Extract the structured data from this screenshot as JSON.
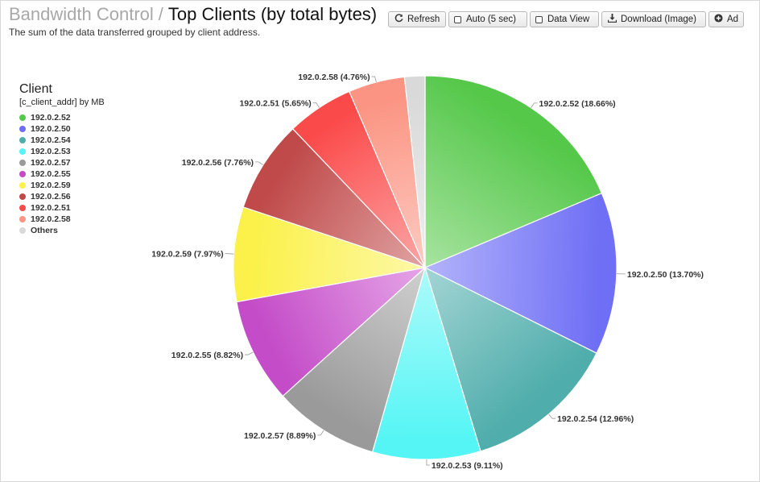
{
  "header": {
    "breadcrumb": "Bandwidth Control",
    "separator": "/",
    "title": "Top Clients (by total bytes)",
    "subtitle": "The sum of the data transferred grouped by client address."
  },
  "toolbar": {
    "refresh_label": "Refresh",
    "auto_label": "Auto (5 sec)",
    "dataview_label": "Data View",
    "download_label": "Download (Image)",
    "add_label": "Ad"
  },
  "icons": {
    "refresh": "refresh-icon",
    "auto": "checkbox-icon",
    "dataview": "checkbox-icon",
    "download": "download-icon",
    "add": "plus-circle-icon"
  },
  "chart_data": {
    "type": "pie",
    "legend_title": "Client",
    "legend_subtitle": "[c_client_addr] by MB",
    "legend_position": "left",
    "slices": [
      {
        "name": "192.0.2.52",
        "percent": 18.66,
        "label": "192.0.2.52 (18.66%)",
        "color": "#55c84a",
        "light": "#a7e3a0"
      },
      {
        "name": "192.0.2.50",
        "percent": 13.7,
        "label": "192.0.2.50 (13.70%)",
        "color": "#6f6ff5",
        "light": "#b3b3fb"
      },
      {
        "name": "192.0.2.54",
        "percent": 12.96,
        "label": "192.0.2.54 (12.96%)",
        "color": "#4fadab",
        "light": "#a3d5d4"
      },
      {
        "name": "192.0.2.53",
        "percent": 9.11,
        "label": "192.0.2.53 (9.11%)",
        "color": "#55f5f5",
        "light": "#aefafa"
      },
      {
        "name": "192.0.2.57",
        "percent": 8.89,
        "label": "192.0.2.57 (8.89%)",
        "color": "#9a9a9a",
        "light": "#d0d0d0"
      },
      {
        "name": "192.0.2.55",
        "percent": 8.82,
        "label": "192.0.2.55 (8.82%)",
        "color": "#c44cc8",
        "light": "#e5a6e7"
      },
      {
        "name": "192.0.2.59",
        "percent": 7.97,
        "label": "192.0.2.59 (7.97%)",
        "color": "#fbf14a",
        "light": "#fdf8a8"
      },
      {
        "name": "192.0.2.56",
        "percent": 7.76,
        "label": "192.0.2.56 (7.76%)",
        "color": "#c04a4a",
        "light": "#e0a3a3"
      },
      {
        "name": "192.0.2.51",
        "percent": 5.65,
        "label": "192.0.2.51 (5.65%)",
        "color": "#fb4a4a",
        "light": "#fda6a6"
      },
      {
        "name": "192.0.2.58",
        "percent": 4.76,
        "label": "192.0.2.58 (4.76%)",
        "color": "#fb9482",
        "light": "#fdcbc2"
      },
      {
        "name": "Others",
        "percent": 1.72,
        "label": "",
        "color": "#d9d9d9",
        "light": "#eeeeee"
      }
    ]
  }
}
